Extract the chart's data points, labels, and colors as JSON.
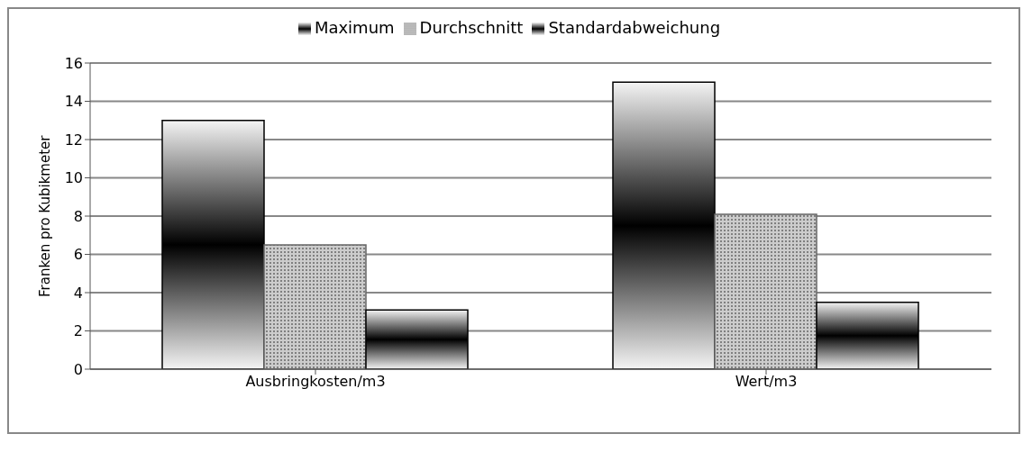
{
  "chart_data": {
    "type": "bar",
    "ylabel": "Franken pro Kubikmeter",
    "categories": [
      "Ausbringkosten/m3",
      "Wert/m3"
    ],
    "series": [
      {
        "name": "Maximum",
        "color": "#000000",
        "values": [
          13,
          15
        ]
      },
      {
        "name": "Durchschnitt",
        "color": "#666666",
        "values": [
          6.5,
          8.1
        ]
      },
      {
        "name": "Standardabweichung",
        "color": "#000000",
        "values": [
          3.1,
          3.5
        ]
      }
    ],
    "ylim": [
      0,
      16
    ],
    "yticks": [
      0,
      2,
      4,
      6,
      8,
      10,
      12,
      14,
      16
    ],
    "grid": "y",
    "legend": "top"
  }
}
